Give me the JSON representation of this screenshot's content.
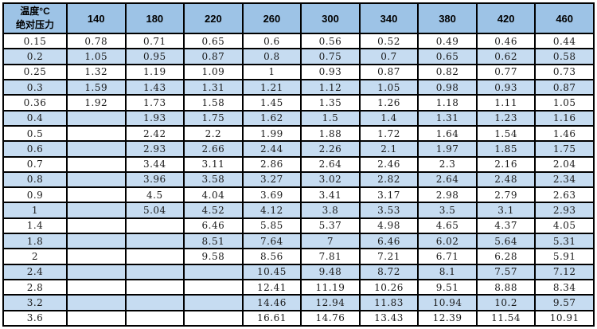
{
  "colors": {
    "header_bg": "#9DC3E6",
    "stripe_bg": "#C6DCF1",
    "row_bg": "#FFFFFF",
    "border": "#000000",
    "text": "#1A1A1A"
  },
  "table": {
    "corner": {
      "line1": "温度°C",
      "line2": "绝对压力"
    },
    "columns": [
      "140",
      "180",
      "220",
      "260",
      "300",
      "340",
      "380",
      "420",
      "460"
    ],
    "rows": [
      {
        "pressure": "0.15",
        "values": [
          "0.78",
          "0.71",
          "0.65",
          "0.6",
          "0.56",
          "0.52",
          "0.49",
          "0.46",
          "0.44"
        ]
      },
      {
        "pressure": "0.2",
        "values": [
          "1.05",
          "0.95",
          "0.87",
          "0.8",
          "0.75",
          "0.7",
          "0.65",
          "0.62",
          "0.58"
        ]
      },
      {
        "pressure": "0.25",
        "values": [
          "1.32",
          "1.19",
          "1.09",
          "1",
          "0.93",
          "0.87",
          "0.82",
          "0.77",
          "0.73"
        ]
      },
      {
        "pressure": "0.3",
        "values": [
          "1.59",
          "1.43",
          "1.31",
          "1.21",
          "1.12",
          "1.05",
          "0.98",
          "0.93",
          "0.87"
        ]
      },
      {
        "pressure": "0.36",
        "values": [
          "1.92",
          "1.73",
          "1.58",
          "1.45",
          "1.35",
          "1.26",
          "1.18",
          "1.11",
          "1.05"
        ]
      },
      {
        "pressure": "0.4",
        "values": [
          "",
          "1.93",
          "1.75",
          "1.62",
          "1.5",
          "1.4",
          "1.31",
          "1.23",
          "1.16"
        ]
      },
      {
        "pressure": "0.5",
        "values": [
          "",
          "2.42",
          "2.2",
          "1.99",
          "1.88",
          "1.72",
          "1.64",
          "1.54",
          "1.46"
        ]
      },
      {
        "pressure": "0.6",
        "values": [
          "",
          "2.93",
          "2.66",
          "2.44",
          "2.26",
          "2.1",
          "1.97",
          "1.85",
          "1.75"
        ]
      },
      {
        "pressure": "0.7",
        "values": [
          "",
          "3.44",
          "3.11",
          "2.86",
          "2.64",
          "2.46",
          "2.3",
          "2.16",
          "2.04"
        ]
      },
      {
        "pressure": "0.8",
        "values": [
          "",
          "3.96",
          "3.58",
          "3.27",
          "3.02",
          "2.82",
          "2.64",
          "2.48",
          "2.34"
        ]
      },
      {
        "pressure": "0.9",
        "values": [
          "",
          "4.5",
          "4.04",
          "3.69",
          "3.41",
          "3.17",
          "2.98",
          "2.79",
          "2.63"
        ]
      },
      {
        "pressure": "1",
        "values": [
          "",
          "5.04",
          "4.52",
          "4.12",
          "3.8",
          "3.53",
          "3.5",
          "3.1",
          "2.93"
        ]
      },
      {
        "pressure": "1.4",
        "values": [
          "",
          "",
          "6.46",
          "5.85",
          "5.37",
          "4.98",
          "4.65",
          "4.37",
          "4.05"
        ]
      },
      {
        "pressure": "1.8",
        "values": [
          "",
          "",
          "8.51",
          "7.64",
          "7",
          "6.46",
          "6.02",
          "5.64",
          "5.31"
        ]
      },
      {
        "pressure": "2",
        "values": [
          "",
          "",
          "9.58",
          "8.56",
          "7.81",
          "7.21",
          "6.71",
          "6.28",
          "5.91"
        ]
      },
      {
        "pressure": "2.4",
        "values": [
          "",
          "",
          "",
          "10.45",
          "9.48",
          "8.72",
          "8.1",
          "7.57",
          "7.12"
        ]
      },
      {
        "pressure": "2.8",
        "values": [
          "",
          "",
          "",
          "12.41",
          "11.19",
          "10.26",
          "9.51",
          "8.88",
          "8.34"
        ]
      },
      {
        "pressure": "3.2",
        "values": [
          "",
          "",
          "",
          "14.46",
          "12.94",
          "11.83",
          "10.94",
          "10.2",
          "9.57"
        ]
      },
      {
        "pressure": "3.6",
        "values": [
          "",
          "",
          "",
          "16.61",
          "14.76",
          "13.43",
          "12.39",
          "11.54",
          "10.91"
        ]
      }
    ]
  }
}
